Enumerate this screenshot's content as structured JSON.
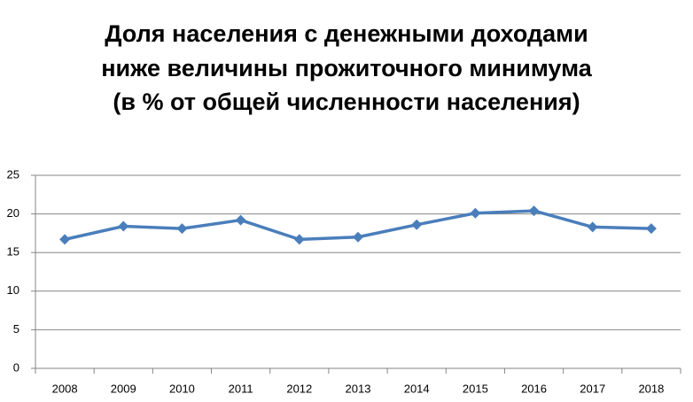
{
  "chart_data": {
    "type": "line",
    "title": [
      "Доля населения с денежными доходами",
      "ниже величины прожиточного минимума",
      "(в % от общей численности населения)"
    ],
    "categories": [
      "2008",
      "2009",
      "2010",
      "2011",
      "2012",
      "2013",
      "2014",
      "2015",
      "2016",
      "2017",
      "2018"
    ],
    "values": [
      16.7,
      18.4,
      18.1,
      19.2,
      16.7,
      17.0,
      18.6,
      20.1,
      20.4,
      18.3,
      18.1
    ],
    "color": "#4a7ebb",
    "ylim": [
      0,
      25
    ],
    "yticks": [
      0,
      5,
      10,
      15,
      20,
      25
    ],
    "grid": true
  }
}
